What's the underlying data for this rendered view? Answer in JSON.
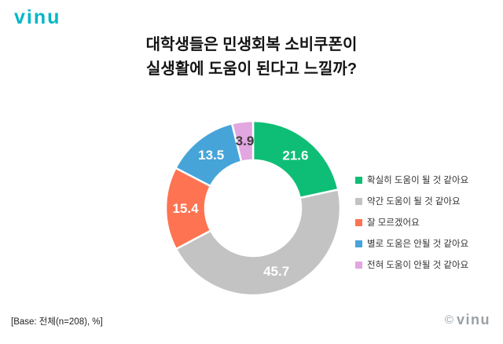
{
  "logo": {
    "text": "vinu"
  },
  "title": {
    "line1": "대학생들은 민생회복 소비쿠폰이",
    "line2": "실생활에 도움이 된다고 느낄까?"
  },
  "footer": {
    "base_note": "[Base: 전체(n=208), %]",
    "copyright_symbol": "©",
    "copyright_text": "vinu"
  },
  "colors": {
    "brand_teal": "#00b7c6",
    "copyright_gray": "#9aa0a4"
  },
  "chart_data": {
    "type": "pie",
    "subtype": "donut",
    "title": "대학생들은 민생회복 소비쿠폰이 실생활에 도움이 된다고 느낄까?",
    "unit": "%",
    "categories": [
      "확실히 도움이 될 것 같아요",
      "약간 도움이 될 것 같아요",
      "잘 모르겠어요",
      "별로 도움은 안될 것 같아요",
      "전혀 도움이 안될 것 같아요"
    ],
    "values": [
      21.6,
      45.7,
      15.4,
      13.5,
      3.9
    ],
    "colors": [
      "#0ebe76",
      "#c3c3c3",
      "#fe7351",
      "#46a4d9",
      "#e2a6e0"
    ],
    "value_label_colors": [
      "#ffffff",
      "#ffffff",
      "#ffffff",
      "#ffffff",
      "#3d3d3d"
    ],
    "legend_position": "right",
    "start_angle_deg": 0,
    "direction": "clockwise",
    "inner_radius_ratio": 0.55
  }
}
